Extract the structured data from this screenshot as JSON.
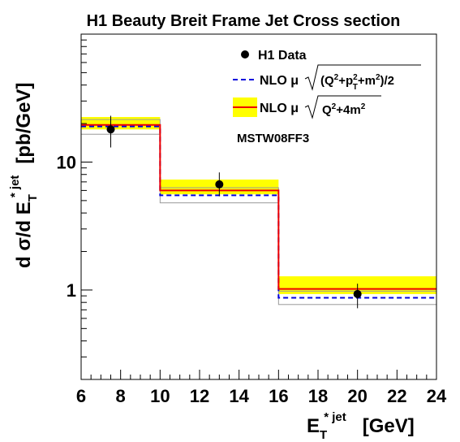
{
  "chart_data": {
    "type": "line",
    "title": "H1 Beauty Breit Frame Jet Cross section",
    "xlim": [
      6,
      24
    ],
    "ylim": [
      0.2,
      100
    ],
    "y_scale": "log",
    "x_ticks": [
      "6",
      "8",
      "10",
      "12",
      "14",
      "16",
      "18",
      "20",
      "22",
      "24"
    ],
    "y_ticks": [
      "1",
      "10"
    ],
    "xlabel": {
      "main": "E",
      "sub": "T",
      "sup": "* jet",
      "unit": "[GeV]"
    },
    "ylabel": {
      "prefix": "d σ/d E",
      "sub": "T",
      "sup": "* jet",
      "unit": "[pb/GeV]"
    },
    "legend_position": "top-right",
    "annotation": "MSTW08FF3",
    "bins": [
      [
        6,
        10
      ],
      [
        10,
        16
      ],
      [
        16,
        24
      ]
    ],
    "series": [
      {
        "name": "H1 Data",
        "kind": "points",
        "x": [
          7.5,
          13,
          20
        ],
        "y": [
          18.0,
          6.7,
          0.93
        ],
        "err_low": [
          13.0,
          5.4,
          0.72
        ],
        "err_high": [
          23.0,
          8.3,
          1.12
        ]
      },
      {
        "name": "NLO μ",
        "legend_formula": {
          "lead": "(Q",
          "p": "+p",
          "pt": "T",
          "m": "+m",
          "end": ")/2"
        },
        "kind": "dashed-step",
        "color": "#0000dd",
        "values": [
          19.0,
          5.5,
          0.87
        ],
        "band_low": [
          16.5,
          4.8,
          0.77
        ],
        "band_high": [
          21.5,
          6.3,
          0.98
        ]
      },
      {
        "name": "NLO μ",
        "legend_formula": {
          "lead": "Q",
          "end": "+4m"
        },
        "kind": "solid-step",
        "color": "#ee0000",
        "band_color": "#ffff00",
        "values": [
          19.5,
          6.0,
          1.02
        ],
        "band_low": [
          18.0,
          5.6,
          0.93
        ],
        "band_high": [
          22.5,
          7.3,
          1.28
        ]
      }
    ]
  }
}
